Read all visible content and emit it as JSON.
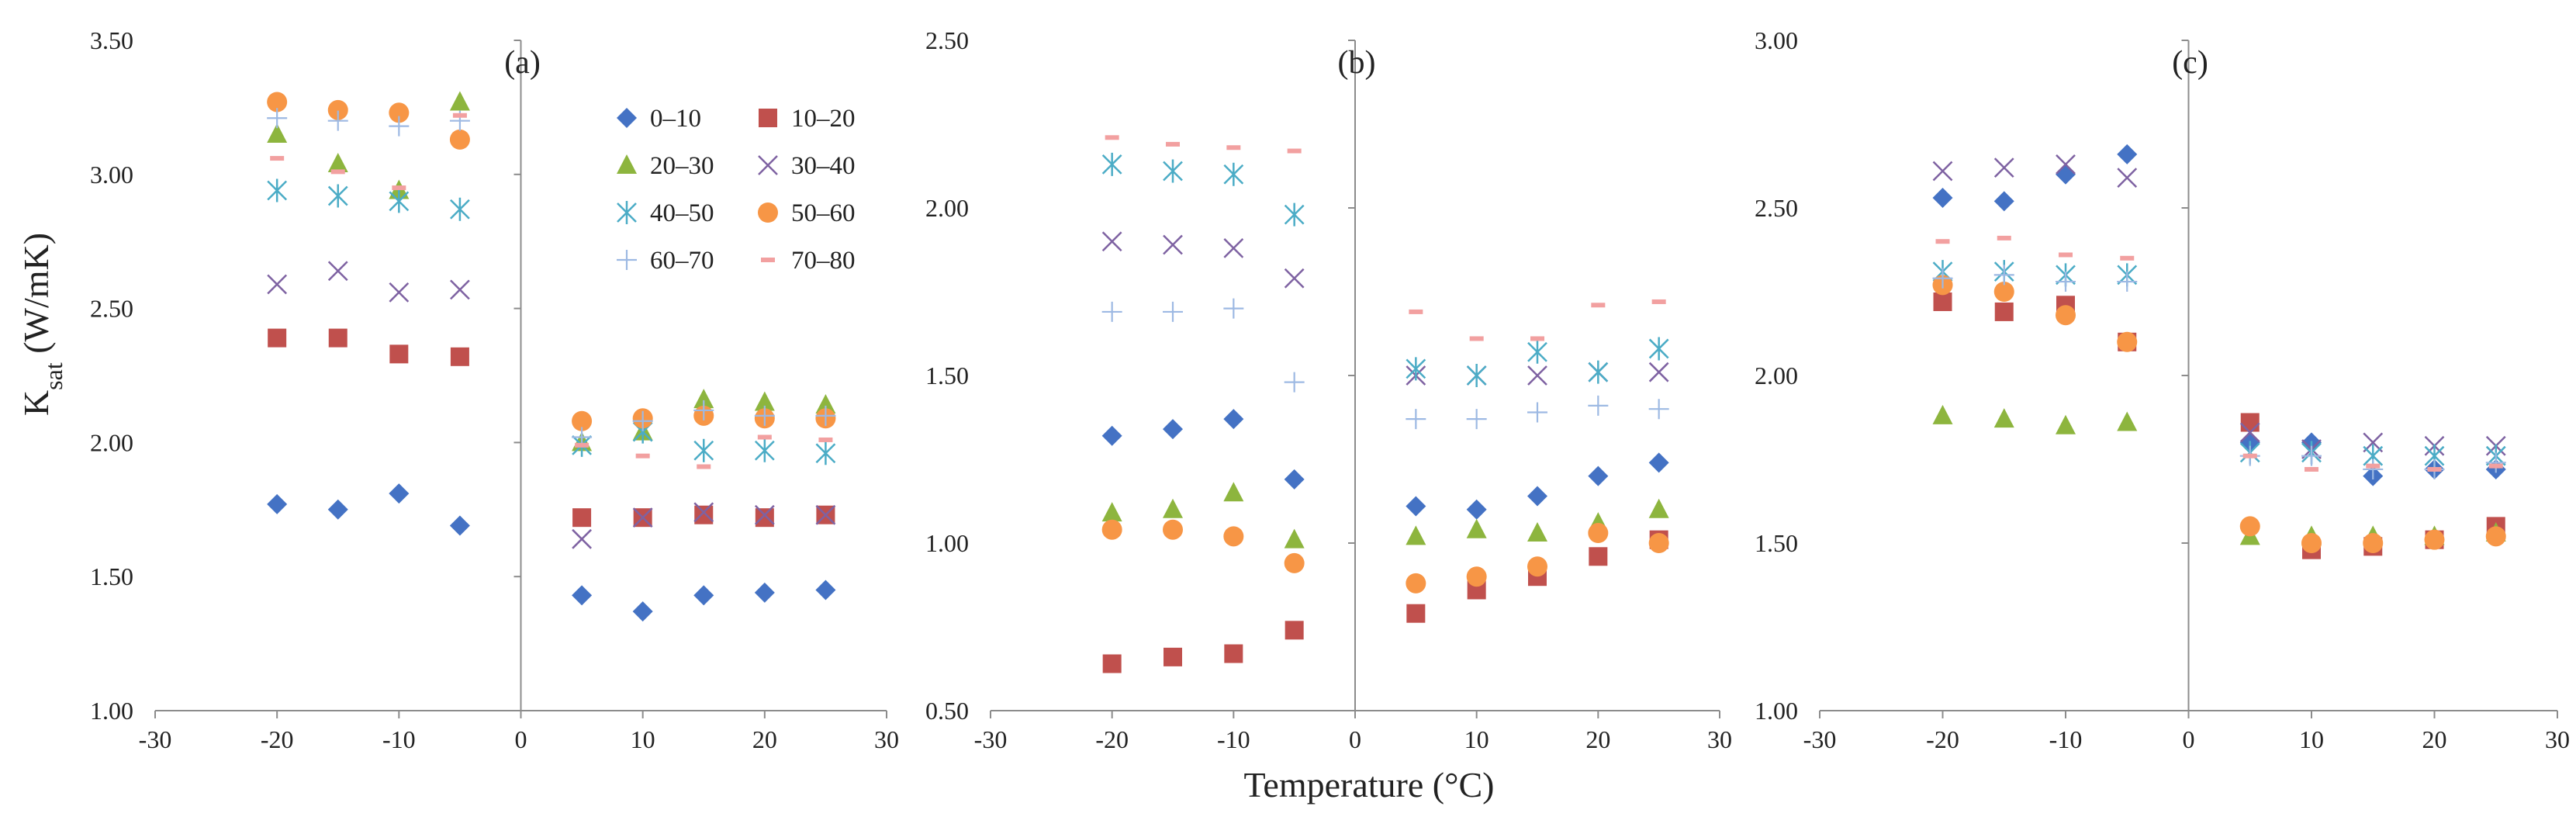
{
  "chart_data": {
    "type": "scatter",
    "ylabel_main": "K",
    "ylabel_sub": "sat",
    "ylabel_unit": " (W/mK)",
    "xlabel": "Temperature (°C)",
    "x_ticks": [
      -30,
      -20,
      -10,
      0,
      10,
      20,
      30
    ],
    "x_tick_labels": [
      "-30",
      "-20",
      "-10",
      "0",
      "10",
      "20",
      "30"
    ],
    "series_meta": [
      {
        "name": "0–10",
        "marker": "diamond",
        "color": "#4472C4"
      },
      {
        "name": "10–20",
        "marker": "square",
        "color": "#C0504D"
      },
      {
        "name": "20–30",
        "marker": "triangle",
        "color": "#8DB53E"
      },
      {
        "name": "30–40",
        "marker": "x",
        "color": "#7E62A2"
      },
      {
        "name": "40–50",
        "marker": "asterisk",
        "color": "#4BACC6"
      },
      {
        "name": "50–60",
        "marker": "circle",
        "color": "#F79646"
      },
      {
        "name": "60–70",
        "marker": "plus",
        "color": "#9DB9E3"
      },
      {
        "name": "70–80",
        "marker": "dash",
        "color": "#F2A0A0"
      }
    ],
    "x": [
      -20,
      -15,
      -10,
      -5,
      5,
      10,
      15,
      20,
      25
    ],
    "panels": [
      {
        "label": "(a)",
        "xlim": [
          -30,
          30
        ],
        "ylim": [
          1.0,
          3.5
        ],
        "y_ticks": [
          1.0,
          1.5,
          2.0,
          2.5,
          3.0,
          3.5
        ],
        "y_tick_labels": [
          "1.00",
          "1.50",
          "2.00",
          "2.50",
          "3.00",
          "3.50"
        ],
        "legend": true,
        "series": [
          {
            "name": "0–10",
            "values": [
              1.77,
              1.75,
              1.81,
              1.69,
              1.43,
              1.37,
              1.43,
              1.44,
              1.45
            ]
          },
          {
            "name": "10–20",
            "values": [
              2.39,
              2.39,
              2.33,
              2.32,
              1.72,
              1.72,
              1.73,
              1.72,
              1.73
            ]
          },
          {
            "name": "20–30",
            "values": [
              3.15,
              3.04,
              2.94,
              3.27,
              2.0,
              2.04,
              2.16,
              2.15,
              2.14
            ]
          },
          {
            "name": "30–40",
            "values": [
              2.59,
              2.64,
              2.56,
              2.57,
              1.64,
              1.72,
              1.74,
              1.73,
              1.73
            ]
          },
          {
            "name": "40–50",
            "values": [
              2.94,
              2.92,
              2.9,
              2.87,
              1.99,
              2.04,
              1.97,
              1.97,
              1.96
            ]
          },
          {
            "name": "50–60",
            "values": [
              3.27,
              3.24,
              3.23,
              3.13,
              2.08,
              2.09,
              2.1,
              2.09,
              2.09
            ]
          },
          {
            "name": "60–70",
            "values": [
              3.21,
              3.2,
              3.18,
              3.2,
              2.02,
              2.08,
              2.12,
              2.1,
              2.1
            ]
          },
          {
            "name": "70–80",
            "values": [
              3.06,
              3.01,
              2.95,
              3.22,
              1.99,
              1.95,
              1.91,
              2.02,
              2.01
            ]
          }
        ]
      },
      {
        "label": "(b)",
        "xlim": [
          -30,
          30
        ],
        "ylim": [
          0.5,
          2.5
        ],
        "y_ticks": [
          0.5,
          1.0,
          1.5,
          2.0,
          2.5
        ],
        "y_tick_labels": [
          "0.50",
          "1.00",
          "1.50",
          "2.00",
          "2.50"
        ],
        "legend": false,
        "series": [
          {
            "name": "0–10",
            "values": [
              1.32,
              1.34,
              1.37,
              1.19,
              1.11,
              1.1,
              1.14,
              1.2,
              1.24
            ]
          },
          {
            "name": "10–20",
            "values": [
              0.64,
              0.66,
              0.67,
              0.74,
              0.79,
              0.86,
              0.9,
              0.96,
              1.01
            ]
          },
          {
            "name": "20–30",
            "values": [
              1.09,
              1.1,
              1.15,
              1.01,
              1.02,
              1.04,
              1.03,
              1.06,
              1.1
            ]
          },
          {
            "name": "30–40",
            "values": [
              1.9,
              1.89,
              1.88,
              1.79,
              1.5,
              1.5,
              1.5,
              1.51,
              1.51
            ]
          },
          {
            "name": "40–50",
            "values": [
              2.13,
              2.11,
              2.1,
              1.98,
              1.52,
              1.5,
              1.57,
              1.51,
              1.58
            ]
          },
          {
            "name": "50–60",
            "values": [
              1.04,
              1.04,
              1.02,
              0.94,
              0.88,
              0.9,
              0.93,
              1.03,
              1.0
            ]
          },
          {
            "name": "60–70",
            "values": [
              1.69,
              1.69,
              1.7,
              1.48,
              1.37,
              1.37,
              1.39,
              1.41,
              1.4
            ]
          },
          {
            "name": "70–80",
            "values": [
              2.21,
              2.19,
              2.18,
              2.17,
              1.69,
              1.61,
              1.61,
              1.71,
              1.72
            ]
          }
        ]
      },
      {
        "label": "(c)",
        "xlim": [
          -30,
          30
        ],
        "ylim": [
          1.0,
          3.0
        ],
        "y_ticks": [
          1.0,
          1.5,
          2.0,
          2.5,
          3.0
        ],
        "y_tick_labels": [
          "1.00",
          "1.50",
          "2.00",
          "2.50",
          "3.00"
        ],
        "legend": false,
        "series": [
          {
            "name": "0–10",
            "values": [
              2.53,
              2.52,
              2.6,
              2.66,
              1.8,
              1.8,
              1.7,
              1.72,
              1.72
            ]
          },
          {
            "name": "10–20",
            "values": [
              2.22,
              2.19,
              2.21,
              2.1,
              1.86,
              1.48,
              1.49,
              1.51,
              1.55
            ]
          },
          {
            "name": "20–30",
            "values": [
              1.88,
              1.87,
              1.85,
              1.86,
              1.52,
              1.52,
              1.52,
              1.52,
              1.53
            ]
          },
          {
            "name": "30–40",
            "values": [
              2.61,
              2.62,
              2.63,
              2.59,
              1.83,
              1.78,
              1.8,
              1.79,
              1.79
            ]
          },
          {
            "name": "40–50",
            "values": [
              2.31,
              2.31,
              2.3,
              2.3,
              1.77,
              1.77,
              1.76,
              1.76,
              1.76
            ]
          },
          {
            "name": "50–60",
            "values": [
              2.27,
              2.25,
              2.18,
              2.1,
              1.55,
              1.5,
              1.5,
              1.51,
              1.52
            ]
          },
          {
            "name": "60–70",
            "values": [
              2.29,
              2.3,
              2.28,
              2.28,
              1.76,
              1.76,
              1.72,
              1.72,
              1.74
            ]
          },
          {
            "name": "70–80",
            "values": [
              2.4,
              2.41,
              2.36,
              2.35,
              1.76,
              1.72,
              1.73,
              1.72,
              1.73
            ]
          }
        ]
      }
    ]
  }
}
